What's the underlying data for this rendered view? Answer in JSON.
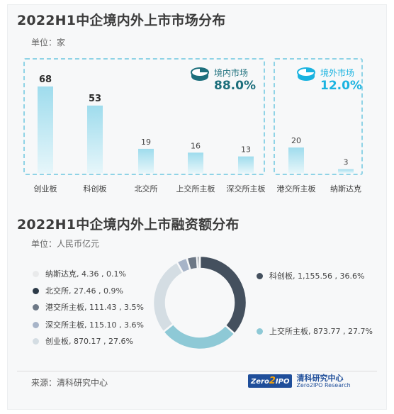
{
  "chart_data": [
    {
      "type": "bar",
      "title": "2022H1中企境内外上市市场分布",
      "unit_label": "单位：家",
      "categories": [
        "创业板",
        "科创板",
        "北交所",
        "上交所主板",
        "深交所主板",
        "港交所主板",
        "纳斯达克"
      ],
      "values": [
        68,
        53,
        19,
        16,
        13,
        20,
        3
      ],
      "value_labels": [
        "68",
        "53",
        "19",
        "16",
        "13",
        "20",
        "3"
      ],
      "ylim": [
        0,
        70
      ],
      "groups": [
        {
          "label": "境内市场",
          "percent": "88.0%",
          "color": "#1d6f7c",
          "categories": [
            "创业板",
            "科创板",
            "北交所",
            "上交所主板",
            "深交所主板"
          ]
        },
        {
          "label": "境外市场",
          "percent": "12.0%",
          "color": "#1ab3e0",
          "categories": [
            "港交所主板",
            "纳斯达克"
          ]
        }
      ],
      "bar_color_top": "#9fdced",
      "bar_color_bottom": "#e6f6fa"
    },
    {
      "type": "pie",
      "title": "2022H1中企境内外上市融资额分布",
      "unit_label": "单位：人民币亿元",
      "slices": [
        {
          "label": "科创板, 1,155.56 , 36.6%",
          "name": "科创板",
          "value": 1155.56,
          "percent": 36.6,
          "color": "#44505e"
        },
        {
          "label": "上交所主板, 873.77 , 27.7%",
          "name": "上交所主板",
          "value": 873.77,
          "percent": 27.7,
          "color": "#8ec9d6"
        },
        {
          "label": "创业板, 870.17 , 27.6%",
          "name": "创业板",
          "value": 870.17,
          "percent": 27.6,
          "color": "#d4dde3"
        },
        {
          "label": "深交所主板, 115.10 , 3.6%",
          "name": "深交所主板",
          "value": 115.1,
          "percent": 3.6,
          "color": "#a7b4c8"
        },
        {
          "label": "港交所主板, 111.43 , 3.5%",
          "name": "港交所主板",
          "value": 111.43,
          "percent": 3.5,
          "color": "#6d7886"
        },
        {
          "label": "北交所, 27.46 , 0.9%",
          "name": "北交所",
          "value": 27.46,
          "percent": 0.9,
          "color": "#2c3a48"
        },
        {
          "label": "纳斯达克, 4.36 , 0.1%",
          "name": "纳斯达克",
          "value": 4.36,
          "percent": 0.1,
          "color": "#e9eaeb"
        }
      ]
    }
  ],
  "footer": {
    "source": "来源：清科研究中心",
    "logo_left": "Zero",
    "logo_two": "2",
    "logo_right": "IPO",
    "logo_cn": "清科研究中心",
    "logo_en": "Zero2IPO Research"
  }
}
